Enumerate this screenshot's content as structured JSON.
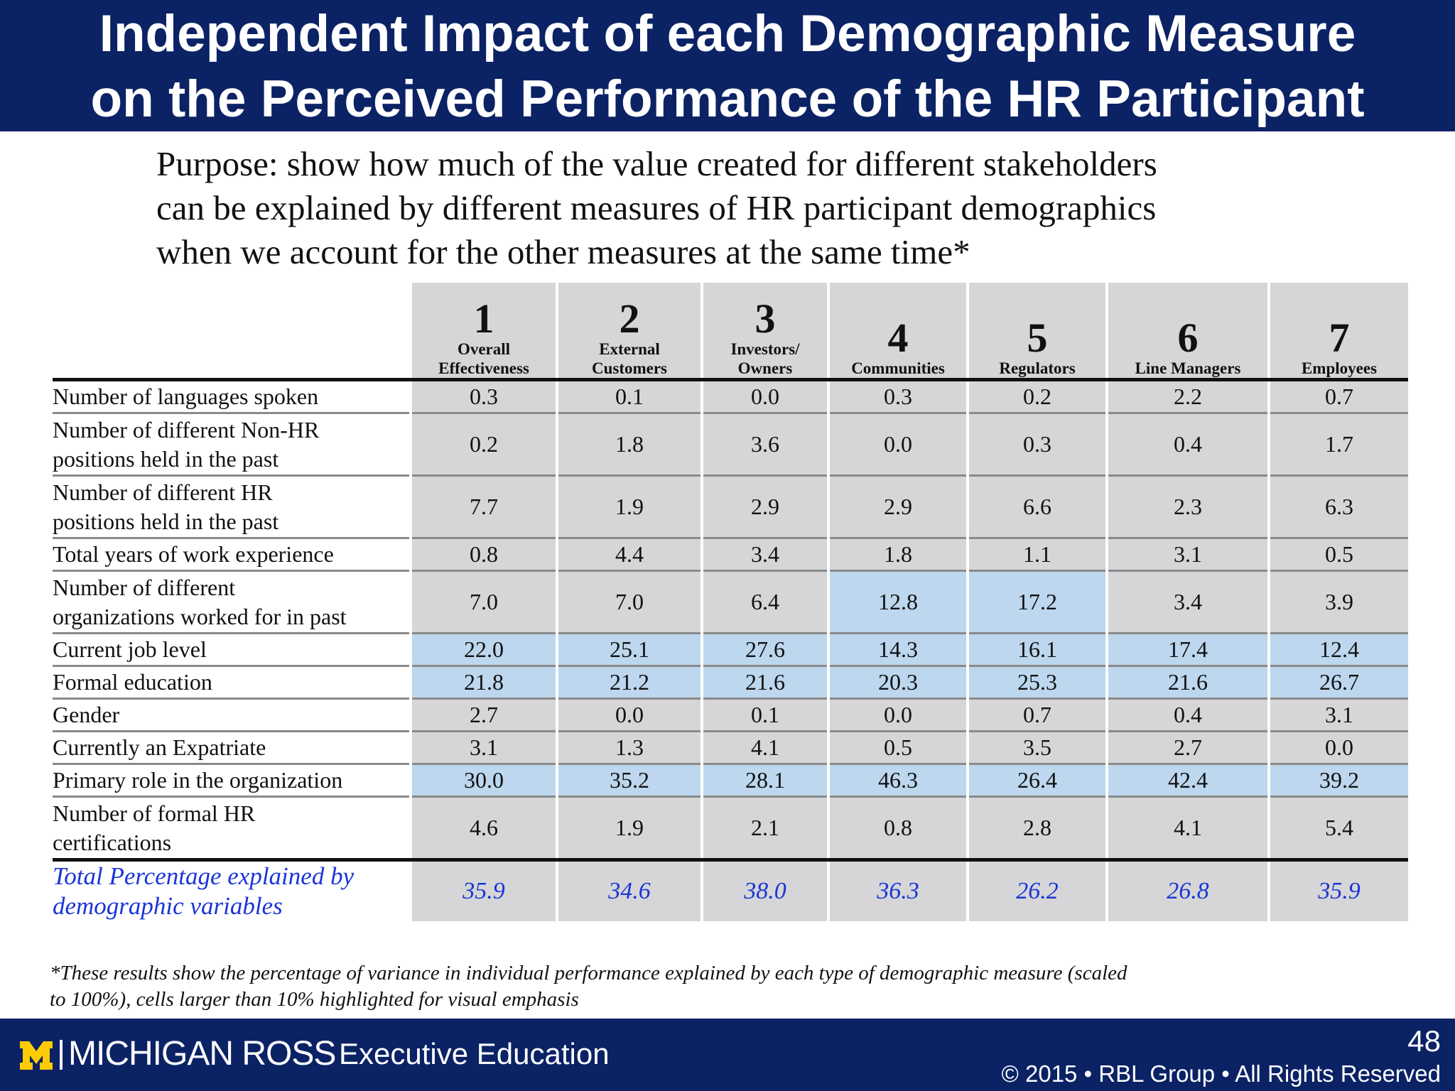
{
  "slide": {
    "title_lines": [
      "Independent Impact of each Demographic Measure",
      "on the Perceived Performance of the HR Participant"
    ],
    "purpose_lines": [
      "Purpose: show how much of the value created for different stakeholders",
      "can be explained by different measures of HR participant demographics",
      "when we account for the other measures at the same time*"
    ],
    "footnote_lines": [
      "*These results show the percentage of variance in individual performance explained by each type of demographic measure (scaled",
      "to 100%), cells larger than 10% highlighted for visual emphasis"
    ]
  },
  "table": {
    "columns": [
      {
        "num": "1",
        "label_lines": [
          "Overall",
          "Effectiveness"
        ]
      },
      {
        "num": "2",
        "label_lines": [
          "External",
          "Customers"
        ]
      },
      {
        "num": "3",
        "label_lines": [
          "Investors/",
          "Owners"
        ]
      },
      {
        "num": "4",
        "label_lines": [
          "Communities"
        ]
      },
      {
        "num": "5",
        "label_lines": [
          "Regulators"
        ]
      },
      {
        "num": "6",
        "label_lines": [
          "Line Managers"
        ]
      },
      {
        "num": "7",
        "label_lines": [
          "Employees"
        ]
      }
    ],
    "rows": [
      {
        "label_lines": [
          "Number of languages spoken"
        ],
        "values": [
          "0.3",
          "0.1",
          "0.0",
          "0.3",
          "0.2",
          "2.2",
          "0.7"
        ]
      },
      {
        "label_lines": [
          "Number of different Non-HR",
          "positions held in the past"
        ],
        "values": [
          "0.2",
          "1.8",
          "3.6",
          "0.0",
          "0.3",
          "0.4",
          "1.7"
        ]
      },
      {
        "label_lines": [
          "Number of different HR",
          "positions held in the past"
        ],
        "values": [
          "7.7",
          "1.9",
          "2.9",
          "2.9",
          "6.6",
          "2.3",
          "6.3"
        ]
      },
      {
        "label_lines": [
          "Total years of work experience"
        ],
        "values": [
          "0.8",
          "4.4",
          "3.4",
          "1.8",
          "1.1",
          "3.1",
          "0.5"
        ]
      },
      {
        "label_lines": [
          "Number of different",
          "organizations worked for in past"
        ],
        "values": [
          "7.0",
          "7.0",
          "6.4",
          "12.8",
          "17.2",
          "3.4",
          "3.9"
        ]
      },
      {
        "label_lines": [
          "Current job level"
        ],
        "values": [
          "22.0",
          "25.1",
          "27.6",
          "14.3",
          "16.1",
          "17.4",
          "12.4"
        ]
      },
      {
        "label_lines": [
          "Formal education"
        ],
        "values": [
          "21.8",
          "21.2",
          "21.6",
          "20.3",
          "25.3",
          "21.6",
          "26.7"
        ]
      },
      {
        "label_lines": [
          "Gender"
        ],
        "values": [
          "2.7",
          "0.0",
          "0.1",
          "0.0",
          "0.7",
          "0.4",
          "3.1"
        ]
      },
      {
        "label_lines": [
          "Currently an Expatriate"
        ],
        "values": [
          "3.1",
          "1.3",
          "4.1",
          "0.5",
          "3.5",
          "2.7",
          "0.0"
        ]
      },
      {
        "label_lines": [
          "Primary role in the organization"
        ],
        "values": [
          "30.0",
          "35.2",
          "28.1",
          "46.3",
          "26.4",
          "42.4",
          "39.2"
        ]
      },
      {
        "label_lines": [
          "Number of formal HR",
          "certifications"
        ],
        "values": [
          "4.6",
          "1.9",
          "2.1",
          "0.8",
          "2.8",
          "4.1",
          "5.4"
        ]
      }
    ],
    "total": {
      "label_lines": [
        "Total Percentage explained by",
        "demographic variables"
      ],
      "values": [
        "35.9",
        "34.6",
        "38.0",
        "36.3",
        "26.2",
        "26.8",
        "35.9"
      ]
    },
    "highlight_threshold": 10,
    "colors": {
      "cell": "#d6d6d8",
      "highlight": "#bcd7ee",
      "total_text": "#1a35d6"
    }
  },
  "footer": {
    "logo_text": "MICHIGAN ROSS",
    "logo_icon": "block-m-icon",
    "program": "Executive Education",
    "page_number": "48",
    "copyright": "© 2015 • RBL Group • All Rights Reserved",
    "colors": {
      "bar": "#0b2265",
      "logo_m": "#ffcb05"
    }
  }
}
